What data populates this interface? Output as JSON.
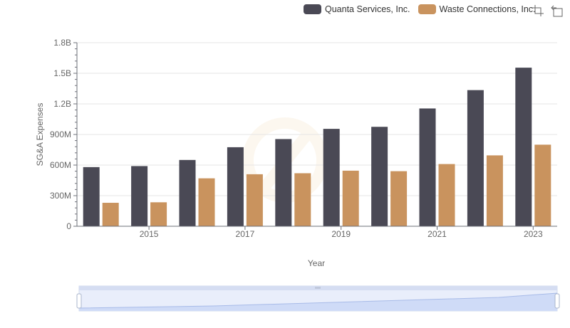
{
  "legend": {
    "items": [
      {
        "name": "Quanta Services, Inc.",
        "color": "#4a4955"
      },
      {
        "name": "Waste Connections, Inc.",
        "color": "#c9935e"
      }
    ]
  },
  "toolbox": {
    "icons": [
      "zoom-icon",
      "restore-icon"
    ]
  },
  "chart_data": {
    "type": "bar",
    "xlabel": "Year",
    "ylabel": "SG&A Expenses",
    "categories": [
      "2014",
      "2015",
      "2016",
      "2017",
      "2018",
      "2019",
      "2020",
      "2021",
      "2022",
      "2023"
    ],
    "x_tick_labels": [
      "2015",
      "2017",
      "2019",
      "2021",
      "2023"
    ],
    "y_tick_labels": [
      "0",
      "300M",
      "600M",
      "900M",
      "1.2B",
      "1.5B",
      "1.8B"
    ],
    "ylim": [
      0,
      1800000000
    ],
    "grid": true,
    "legend_position": "top-right",
    "series": [
      {
        "name": "Quanta Services, Inc.",
        "color": "#4a4955",
        "values": [
          580000000,
          590000000,
          650000000,
          775000000,
          855000000,
          955000000,
          975000000,
          1155000000,
          1335000000,
          1555000000
        ]
      },
      {
        "name": "Waste Connections, Inc.",
        "color": "#c9935e",
        "values": [
          230000000,
          235000000,
          470000000,
          510000000,
          520000000,
          545000000,
          540000000,
          610000000,
          695000000,
          800000000
        ]
      }
    ]
  }
}
